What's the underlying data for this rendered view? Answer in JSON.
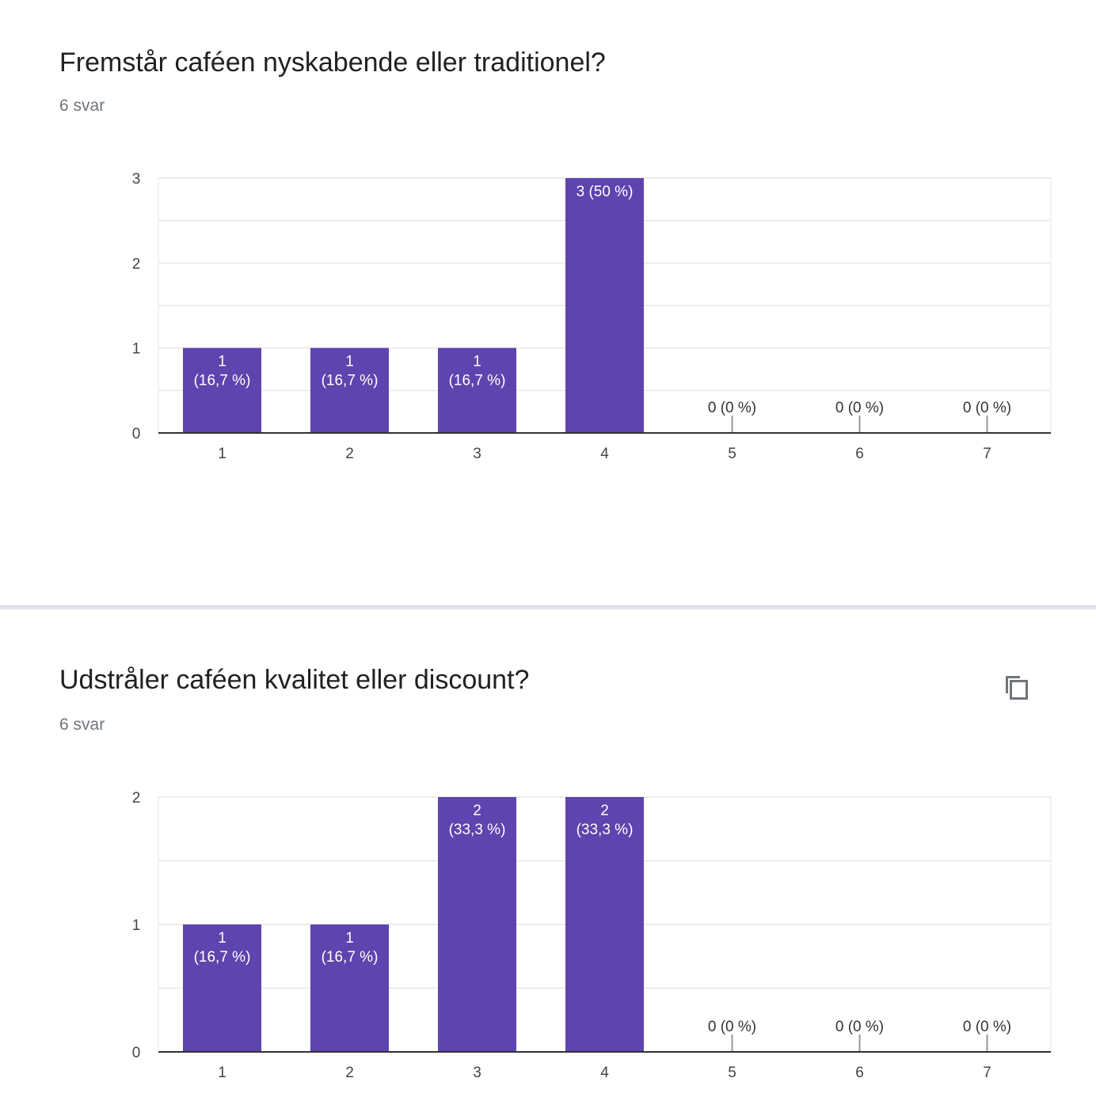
{
  "colors": {
    "bar": "#5e44ae",
    "grid": "#e6e6e6",
    "axis": "#333333"
  },
  "questions": [
    {
      "title": "Fremstår caféen nyskabende eller traditionel?",
      "responses": "6 svar",
      "chart_data": {
        "type": "bar",
        "categories": [
          "1",
          "2",
          "3",
          "4",
          "5",
          "6",
          "7"
        ],
        "values": [
          1,
          1,
          1,
          3,
          0,
          0,
          0
        ],
        "labels": [
          "1\n(16,7 %)",
          "1\n(16,7 %)",
          "1\n(16,7 %)",
          "3 (50 %)",
          "0 (0 %)",
          "0 (0 %)",
          "0 (0 %)"
        ],
        "yticks": [
          "0",
          "1",
          "2",
          "3"
        ],
        "ylim": [
          0,
          3
        ],
        "grid": true
      }
    },
    {
      "title": "Udstråler caféen kvalitet eller discount?",
      "responses": "6 svar",
      "icon": "copy-icon",
      "chart_data": {
        "type": "bar",
        "categories": [
          "1",
          "2",
          "3",
          "4",
          "5",
          "6",
          "7"
        ],
        "values": [
          1,
          1,
          2,
          2,
          0,
          0,
          0
        ],
        "labels": [
          "1\n(16,7 %)",
          "1\n(16,7 %)",
          "2\n(33,3 %)",
          "2\n(33,3 %)",
          "0 (0 %)",
          "0 (0 %)",
          "0 (0 %)"
        ],
        "yticks": [
          "0",
          "1",
          "2"
        ],
        "ylim": [
          0,
          2
        ],
        "grid": true
      }
    }
  ]
}
